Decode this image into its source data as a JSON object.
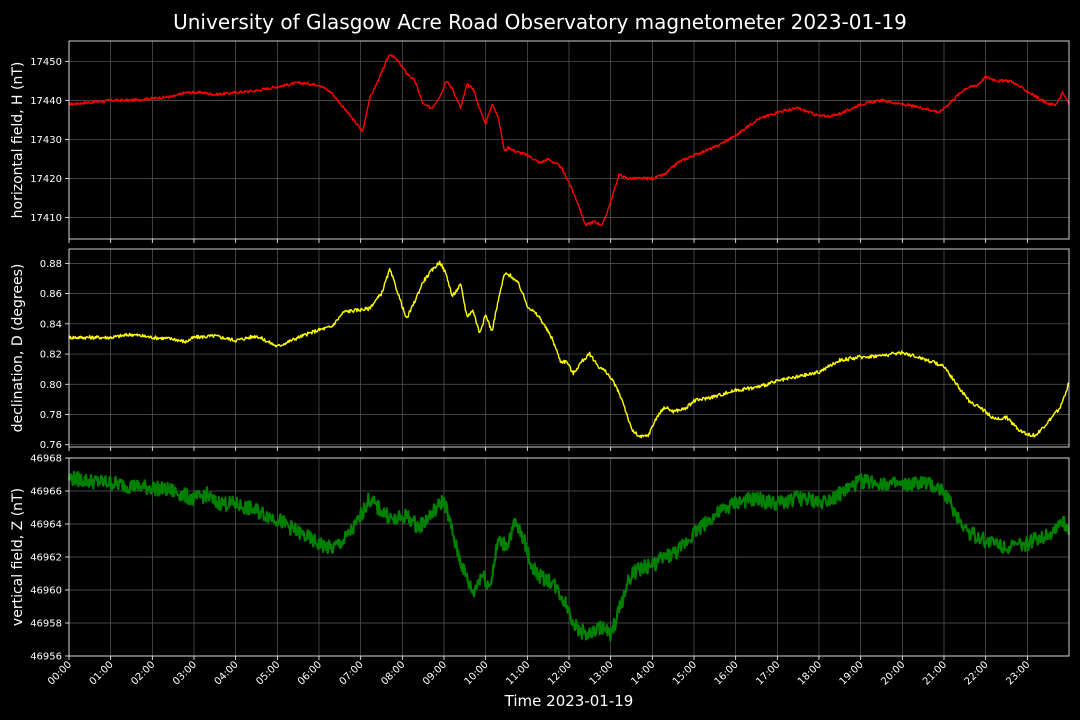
{
  "title": "University of Glasgow Acre Road Observatory magnetometer 2023-01-19",
  "xlabel": "Time 2023-01-19",
  "x_ticks": [
    "00:00",
    "01:00",
    "02:00",
    "03:00",
    "04:00",
    "05:00",
    "06:00",
    "07:00",
    "08:00",
    "09:00",
    "10:00",
    "11:00",
    "12:00",
    "13:00",
    "14:00",
    "15:00",
    "16:00",
    "17:00",
    "18:00",
    "19:00",
    "20:00",
    "21:00",
    "22:00",
    "23:00"
  ],
  "colors": {
    "background": "#000000",
    "grid": "#5a5a5a",
    "axes": "#ffffff",
    "H": "#ff0000",
    "D": "#ffff00",
    "Z": "#008000"
  },
  "chart_data": [
    {
      "type": "line",
      "ylabel": "horizontal field, H (nT)",
      "ylim": [
        17404.5,
        17455.2
      ],
      "yticks": [
        17410,
        17420,
        17430,
        17440,
        17450
      ],
      "grid": true,
      "series": [
        {
          "color": "#ff0000",
          "x_hours": [
            0,
            0.5,
            1,
            1.5,
            2,
            2.5,
            2.8,
            3.2,
            3.5,
            4,
            4.5,
            5,
            5.5,
            6,
            6.3,
            6.6,
            6.9,
            7.05,
            7.2,
            7.5,
            7.7,
            7.9,
            8.1,
            8.3,
            8.5,
            8.7,
            8.9,
            9.05,
            9.2,
            9.4,
            9.55,
            9.7,
            9.85,
            10,
            10.15,
            10.3,
            10.45,
            10.55,
            10.7,
            11,
            11.3,
            11.5,
            11.8,
            12,
            12.2,
            12.4,
            12.6,
            12.8,
            13.0,
            13.2,
            13.4,
            13.6,
            13.8,
            14.0,
            14.3,
            14.6,
            15,
            15.5,
            16,
            16.5,
            17,
            17.5,
            18,
            18.3,
            18.6,
            19,
            19.5,
            20,
            20.5,
            20.9,
            21.2,
            21.5,
            21.8,
            22.0,
            22.3,
            22.6,
            22.9,
            23.2,
            23.5,
            23.7,
            23.85,
            24
          ],
          "values": [
            17439,
            17439.5,
            17440,
            17440,
            17440.5,
            17441,
            17442,
            17442,
            17441.5,
            17442,
            17442.5,
            17443.5,
            17444.5,
            17444,
            17442,
            17438,
            17434,
            17432,
            17440,
            17447,
            17452,
            17450,
            17447,
            17445,
            17439,
            17438,
            17441,
            17445,
            17443,
            17438,
            17444,
            17443,
            17438,
            17434,
            17439,
            17436,
            17427,
            17428,
            17427,
            17426,
            17424,
            17425,
            17423,
            17419,
            17414,
            17408,
            17409,
            17408,
            17414,
            17421,
            17420,
            17420,
            17420,
            17420,
            17421,
            17424,
            17426,
            17428,
            17431,
            17435,
            17437,
            17438,
            17436,
            17436,
            17437,
            17439,
            17440,
            17439,
            17438,
            17437,
            17440,
            17443,
            17444,
            17446,
            17445,
            17445,
            17443,
            17441,
            17439,
            17439,
            17442,
            17439
          ]
        }
      ]
    },
    {
      "type": "line",
      "ylabel": "declination, D (degrees)",
      "ylim": [
        0.7585,
        0.8895
      ],
      "yticks": [
        0.76,
        0.78,
        0.8,
        0.82,
        0.84,
        0.86,
        0.88
      ],
      "grid": true,
      "series": [
        {
          "color": "#ffff00",
          "x_hours": [
            0,
            0.5,
            1,
            1.5,
            2,
            2.5,
            2.8,
            3,
            3.5,
            4,
            4.5,
            5,
            5.5,
            6,
            6.3,
            6.6,
            6.9,
            7.2,
            7.5,
            7.7,
            7.9,
            8.1,
            8.3,
            8.5,
            8.7,
            8.9,
            9.05,
            9.2,
            9.4,
            9.55,
            9.7,
            9.85,
            10,
            10.15,
            10.3,
            10.45,
            10.6,
            10.8,
            11,
            11.3,
            11.6,
            11.8,
            11.95,
            12.1,
            12.3,
            12.5,
            12.7,
            12.9,
            13.1,
            13.3,
            13.5,
            13.7,
            13.9,
            14.1,
            14.3,
            14.5,
            14.8,
            15,
            15.5,
            16,
            16.5,
            17,
            17.5,
            18,
            18.5,
            19,
            19.5,
            20,
            20.5,
            21,
            21.3,
            21.6,
            21.9,
            22.2,
            22.5,
            22.8,
            23.0,
            23.2,
            23.5,
            23.8,
            24
          ],
          "values": [
            0.831,
            0.831,
            0.831,
            0.833,
            0.831,
            0.83,
            0.828,
            0.831,
            0.832,
            0.829,
            0.832,
            0.825,
            0.831,
            0.836,
            0.838,
            0.848,
            0.849,
            0.85,
            0.86,
            0.876,
            0.86,
            0.843,
            0.855,
            0.868,
            0.875,
            0.881,
            0.873,
            0.858,
            0.866,
            0.845,
            0.849,
            0.834,
            0.846,
            0.835,
            0.855,
            0.873,
            0.872,
            0.866,
            0.852,
            0.844,
            0.83,
            0.815,
            0.815,
            0.807,
            0.815,
            0.82,
            0.812,
            0.808,
            0.8,
            0.788,
            0.77,
            0.765,
            0.766,
            0.778,
            0.785,
            0.782,
            0.784,
            0.789,
            0.792,
            0.796,
            0.798,
            0.802,
            0.805,
            0.808,
            0.816,
            0.818,
            0.819,
            0.821,
            0.817,
            0.812,
            0.8,
            0.789,
            0.784,
            0.777,
            0.778,
            0.77,
            0.767,
            0.766,
            0.775,
            0.785,
            0.801
          ]
        }
      ]
    },
    {
      "type": "line",
      "ylabel": "vertical field, Z (nT)",
      "ylim": [
        46956,
        46968
      ],
      "yticks": [
        46956,
        46958,
        46960,
        46962,
        46964,
        46966,
        46968
      ],
      "grid": true,
      "series": [
        {
          "color": "#008000",
          "x_hours": [
            0,
            0.5,
            1,
            1.5,
            2,
            2.5,
            3,
            3.3,
            3.5,
            4,
            4.5,
            5,
            5.5,
            6,
            6.3,
            6.6,
            6.9,
            7.2,
            7.5,
            7.8,
            8.1,
            8.4,
            8.7,
            9,
            9.3,
            9.5,
            9.7,
            9.9,
            10.1,
            10.3,
            10.5,
            10.7,
            10.9,
            11.1,
            11.3,
            11.6,
            11.9,
            12.2,
            12.5,
            12.8,
            13.0,
            13.2,
            13.5,
            13.8,
            14.0,
            14.3,
            14.6,
            15,
            15.5,
            16,
            16.5,
            17,
            17.5,
            18,
            18.5,
            19,
            19.5,
            20,
            20.5,
            21,
            21.3,
            21.6,
            22,
            22.3,
            22.6,
            23,
            23.3,
            23.6,
            23.8,
            24
          ],
          "values": [
            46966.8,
            46966.6,
            46966.5,
            46966.3,
            46966.2,
            46966,
            46965.5,
            46965.8,
            46965.3,
            46965.2,
            46964.8,
            46964.3,
            46963.5,
            46962.8,
            46962.5,
            46963,
            46964,
            46965.5,
            46964.8,
            46964.2,
            46964.5,
            46963.8,
            46964.6,
            46965.5,
            46962.5,
            46961,
            46959.8,
            46961,
            46960.2,
            46963,
            46962.7,
            46964,
            46963.2,
            46961.5,
            46960.8,
            46960.5,
            46959.3,
            46957.6,
            46957.3,
            46957.8,
            46957.2,
            46958.8,
            46961,
            46961.4,
            46961.5,
            46962,
            46962.3,
            46963.5,
            46964.5,
            46965.3,
            46965.5,
            46965.2,
            46965.6,
            46965.3,
            46965.8,
            46966.6,
            46966.5,
            46966.3,
            46966.5,
            46966,
            46964.5,
            46963.5,
            46963,
            46962.8,
            46962.6,
            46962.8,
            46963.2,
            46963.5,
            46964.2,
            46963.7
          ]
        }
      ]
    }
  ]
}
